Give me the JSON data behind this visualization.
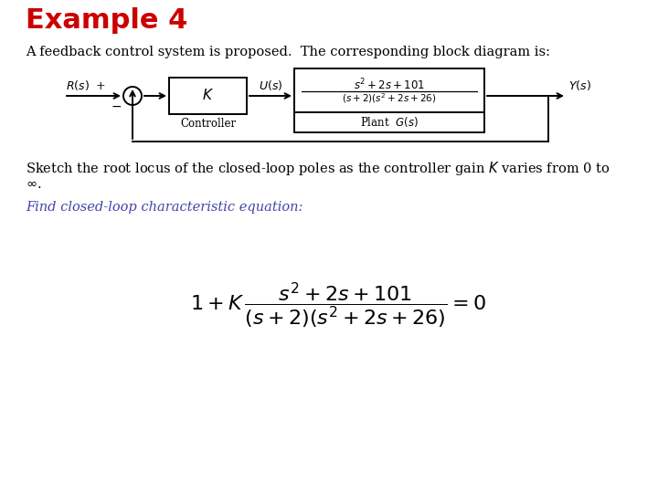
{
  "title": "Example 4",
  "title_color": "#cc0000",
  "bg_color": "#ffffff",
  "subtitle": "A feedback control system is proposed.  The corresponding block diagram is:",
  "sketch_line1": "Sketch the root locus of the closed-loop poles as the controller gain $K$ varies from 0 to",
  "sketch_line2": "$\\infty$.",
  "find_text": "Find closed-loop characteristic equation:",
  "find_color": "#4444aa",
  "title_fontsize": 22,
  "body_fontsize": 10.5,
  "find_fontsize": 10.5,
  "eq_fontsize": 16
}
